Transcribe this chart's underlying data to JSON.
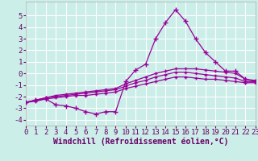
{
  "title": "",
  "xlabel": "Windchill (Refroidissement éolien,°C)",
  "ylabel": "",
  "bg_color": "#cceee8",
  "grid_color": "#aadddd",
  "line_color": "#990099",
  "marker": "+",
  "x": [
    0,
    1,
    2,
    3,
    4,
    5,
    6,
    7,
    8,
    9,
    10,
    11,
    12,
    13,
    14,
    15,
    16,
    17,
    18,
    19,
    20,
    21,
    22,
    23
  ],
  "y_main": [
    -2.5,
    -2.3,
    -2.2,
    -2.7,
    -2.8,
    -3.0,
    -3.3,
    -3.5,
    -3.3,
    -3.3,
    -0.7,
    0.3,
    0.8,
    3.0,
    4.4,
    5.5,
    4.5,
    3.0,
    1.8,
    1.0,
    0.2,
    0.2,
    -0.5,
    -0.7
  ],
  "y_line1": [
    -2.5,
    -2.3,
    -2.1,
    -1.9,
    -1.8,
    -1.7,
    -1.6,
    -1.5,
    -1.4,
    -1.3,
    -0.9,
    -0.6,
    -0.3,
    0.0,
    0.2,
    0.4,
    0.4,
    0.4,
    0.3,
    0.2,
    0.1,
    0.0,
    -0.5,
    -0.6
  ],
  "y_line2": [
    -2.5,
    -2.3,
    -2.1,
    -2.0,
    -1.9,
    -1.8,
    -1.7,
    -1.6,
    -1.5,
    -1.4,
    -1.1,
    -0.8,
    -0.6,
    -0.3,
    -0.1,
    0.1,
    0.1,
    0.0,
    -0.1,
    -0.2,
    -0.3,
    -0.4,
    -0.7,
    -0.7
  ],
  "y_line3": [
    -2.5,
    -2.4,
    -2.2,
    -2.1,
    -2.0,
    -1.9,
    -1.9,
    -1.8,
    -1.7,
    -1.6,
    -1.3,
    -1.1,
    -0.9,
    -0.7,
    -0.5,
    -0.3,
    -0.3,
    -0.4,
    -0.5,
    -0.5,
    -0.6,
    -0.7,
    -0.8,
    -0.8
  ],
  "ylim": [
    -4.5,
    6.2
  ],
  "xlim": [
    0,
    23
  ],
  "yticks": [
    -4,
    -3,
    -2,
    -1,
    0,
    1,
    2,
    3,
    4,
    5
  ],
  "xticks": [
    0,
    1,
    2,
    3,
    4,
    5,
    6,
    7,
    8,
    9,
    10,
    11,
    12,
    13,
    14,
    15,
    16,
    17,
    18,
    19,
    20,
    21,
    22,
    23
  ],
  "xlabel_fontsize": 7.0,
  "tick_fontsize": 6.5,
  "linewidth": 0.9,
  "markersize": 3.5
}
